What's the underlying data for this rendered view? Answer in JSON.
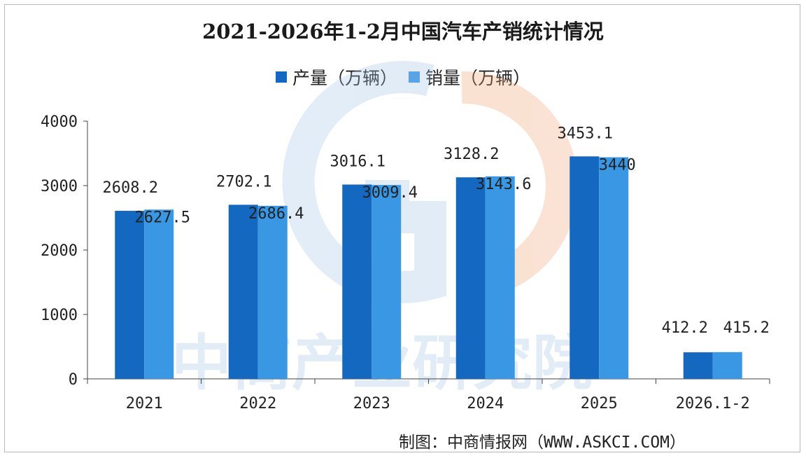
{
  "chart_data": {
    "type": "bar",
    "title": "2021-2026年1-2月中国汽车产销统计情况",
    "categories": [
      "2021",
      "2022",
      "2023",
      "2024",
      "2025",
      "2026.1-2"
    ],
    "series": [
      {
        "name": "产量（万辆）",
        "values": [
          2608.2,
          2702.1,
          3016.1,
          3128.2,
          3453.1,
          412.2
        ]
      },
      {
        "name": "销量（万辆）",
        "values": [
          2627.5,
          2686.4,
          3009.4,
          3143.6,
          3440,
          415.2
        ]
      }
    ],
    "value_labels": [
      [
        "2608.2",
        "2702.1",
        "3016.1",
        "3128.2",
        "3453.1",
        "412.2"
      ],
      [
        "2627.5",
        "2686.4",
        "3009.4",
        "3143.6",
        "3440",
        "415.2"
      ]
    ],
    "y_ticks": [
      "0",
      "1000",
      "2000",
      "3000",
      "4000"
    ],
    "ylim": [
      0,
      4000
    ],
    "legend_position": "top-center",
    "colors": {
      "production": "#1468c0",
      "sales": "#3a97e4"
    }
  },
  "watermark": "中商产业研究院",
  "credit": "制图：中商情报网（WWW.ASKCI.COM）"
}
